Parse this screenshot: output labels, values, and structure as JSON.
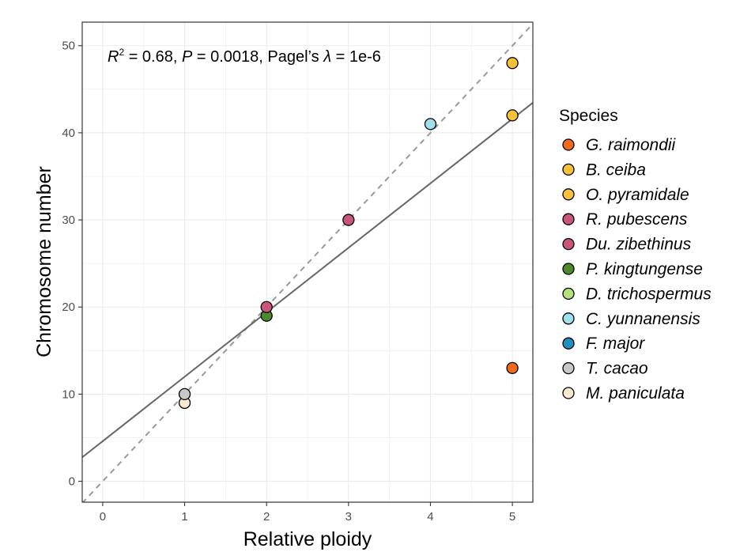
{
  "chart_data": {
    "type": "scatter",
    "xlabel": "Relative ploidy",
    "ylabel": "Chromosome number",
    "xlim": [
      -0.25,
      5.25
    ],
    "ylim": [
      -2.4,
      52.7
    ],
    "x_ticks": [
      0,
      1,
      2,
      3,
      4,
      5
    ],
    "y_ticks": [
      0,
      10,
      20,
      30,
      40,
      50
    ],
    "grid": true,
    "annotation": {
      "r2_label": "R",
      "r2_sup": "2",
      "r2_value": " = 0.68, ",
      "p_label": "P",
      "p_value": " = 0.0018, Pagel’s ",
      "lambda_label": "λ",
      "lambda_value": " = 1e-6"
    },
    "fit_line": {
      "intercept": 4.6,
      "slope": 7.4,
      "color": "#666666",
      "style": "solid"
    },
    "reference_line": {
      "intercept": 0,
      "slope": 10,
      "color": "#999999",
      "style": "dashed"
    },
    "legend": {
      "title": "Species",
      "position": "right",
      "entries": [
        {
          "name": "G. raimondii",
          "color": "#f26b1d"
        },
        {
          "name": "B. ceiba",
          "color": "#f9c13a"
        },
        {
          "name": "O. pyramidale",
          "color": "#f9c13a"
        },
        {
          "name": "R. pubescens",
          "color": "#c9557a"
        },
        {
          "name": "Du. zibethinus",
          "color": "#c9557a"
        },
        {
          "name": "P. kingtungense",
          "color": "#4d8a2a"
        },
        {
          "name": "D. trichospermus",
          "color": "#b6e07a"
        },
        {
          "name": "C. yunnanensis",
          "color": "#9fe0ec"
        },
        {
          "name": "F. major",
          "color": "#1f8fc1"
        },
        {
          "name": "T. cacao",
          "color": "#c8c8c8"
        },
        {
          "name": "M. paniculata",
          "color": "#fde8d2"
        }
      ]
    },
    "points": [
      {
        "species": "M. paniculata",
        "x": 1,
        "y": 9,
        "color": "#fde8d2"
      },
      {
        "species": "T. cacao",
        "x": 1,
        "y": 10,
        "color": "#c8c8c8"
      },
      {
        "species": "P. kingtungense",
        "x": 2,
        "y": 19,
        "color": "#4d8a2a"
      },
      {
        "species": "R. pubescens",
        "x": 2,
        "y": 20,
        "color": "#c9557a"
      },
      {
        "species": "Du. zibethinus",
        "x": 3,
        "y": 30,
        "color": "#c9557a"
      },
      {
        "species": "C. yunnanensis",
        "x": 4,
        "y": 41,
        "color": "#9fe0ec"
      },
      {
        "species": "O. pyramidale",
        "x": 5,
        "y": 42,
        "color": "#f9c13a"
      },
      {
        "species": "B. ceiba",
        "x": 5,
        "y": 48,
        "color": "#f9c13a"
      },
      {
        "species": "G. raimondii",
        "x": 5,
        "y": 13,
        "color": "#f26b1d"
      }
    ]
  }
}
